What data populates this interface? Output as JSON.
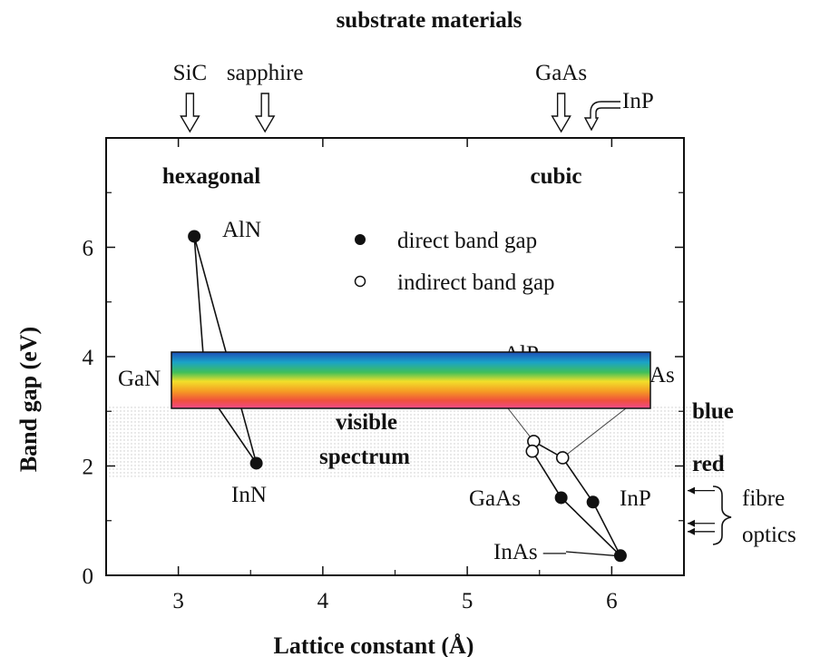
{
  "chart_data": {
    "type": "scatter",
    "title": "",
    "top_title": "substrate materials",
    "xlabel": "Lattice constant (Å)",
    "ylabel": "Band gap (eV)",
    "xlim": [
      2.5,
      6.5
    ],
    "ylim": [
      0,
      8
    ],
    "xticks": [
      3,
      4,
      5,
      6
    ],
    "yticks": [
      0,
      2,
      4,
      6
    ],
    "substrates": [
      {
        "label": "SiC",
        "x": 3.08
      },
      {
        "label": "sapphire",
        "x": 3.6
      },
      {
        "label": "GaAs",
        "x": 5.65
      },
      {
        "label": "InP",
        "x": 5.87
      }
    ],
    "region_labels": {
      "hexagonal": "hexagonal",
      "cubic": "cubic"
    },
    "points": [
      {
        "name": "AlN",
        "x": 3.11,
        "y": 6.2,
        "gap": "direct"
      },
      {
        "name": "GaN",
        "x": 3.19,
        "y": 3.4,
        "gap": "direct"
      },
      {
        "name": "InN",
        "x": 3.54,
        "y": 2.05,
        "gap": "direct"
      },
      {
        "name": "AlP",
        "x": 5.46,
        "y": 2.45,
        "gap": "indirect"
      },
      {
        "name": "AlAs",
        "x": 5.66,
        "y": 2.15,
        "gap": "indirect"
      },
      {
        "name": "",
        "x": 5.45,
        "y": 2.27,
        "gap": "indirect"
      },
      {
        "name": "GaAs",
        "x": 5.65,
        "y": 1.42,
        "gap": "direct"
      },
      {
        "name": "InP",
        "x": 5.87,
        "y": 1.34,
        "gap": "direct"
      },
      {
        "name": "InAs",
        "x": 6.06,
        "y": 0.36,
        "gap": "direct"
      }
    ],
    "visible_labels": {
      "GaN": "GaN",
      "AlP": "AlP",
      "AlAs": "As",
      "InAs": "InAs —"
    },
    "legend": [
      {
        "label": "direct band gap",
        "marker": "filled"
      },
      {
        "label": "indirect band gap",
        "marker": "open"
      }
    ],
    "annotations": {
      "visible": "visible",
      "spectrum": "spectrum",
      "blue": "blue",
      "red": "red",
      "fibre": "fibre",
      "optics": "optics"
    },
    "visible_band_ev": [
      1.8,
      3.1
    ],
    "fibre_wavelength_ev": [
      1.55,
      0.95,
      0.8
    ]
  }
}
